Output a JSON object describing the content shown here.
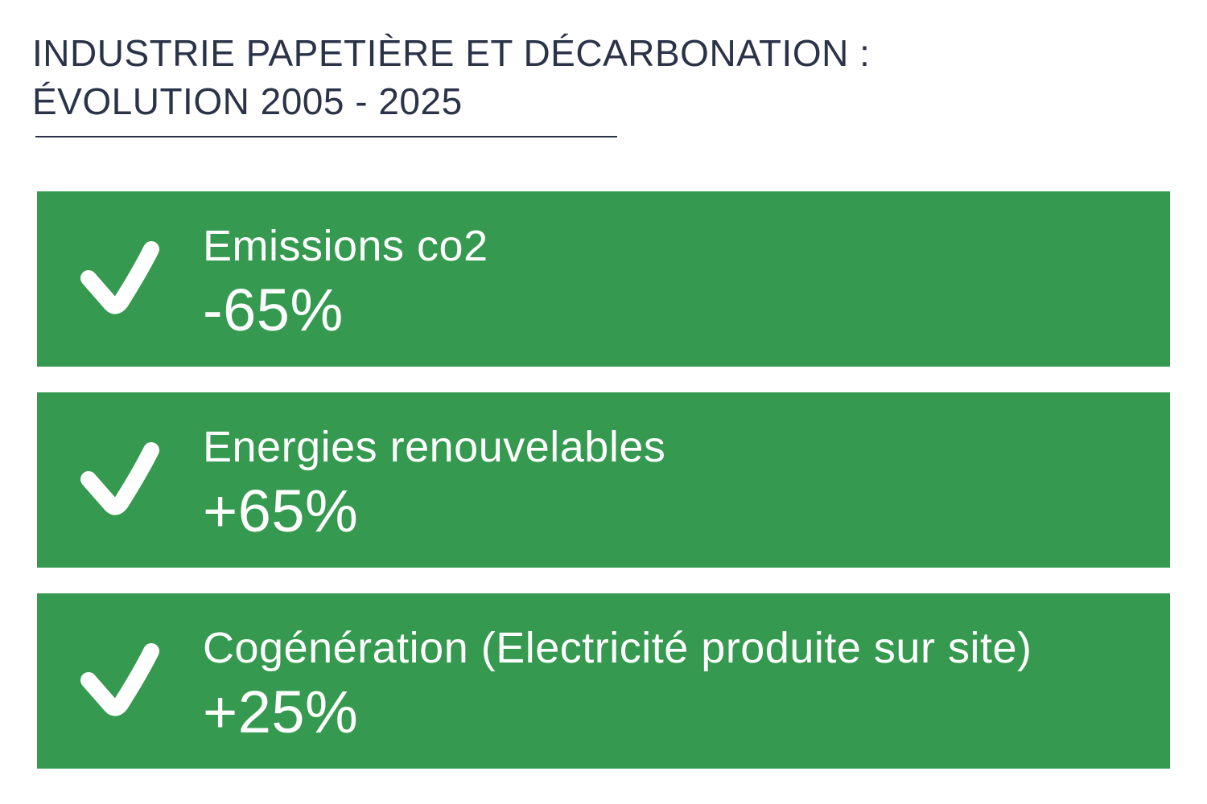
{
  "header": {
    "title_line1": "INDUSTRIE PAPETIÈRE ET DÉCARBONATION :",
    "title_line2": "ÉVOLUTION 2005 - 2025"
  },
  "colors": {
    "card_background": "#359a4f",
    "title_text": "#2b3349",
    "card_text": "#ffffff"
  },
  "cards": [
    {
      "icon": "checkmark-icon",
      "label": "Emissions co2",
      "value": "-65%"
    },
    {
      "icon": "checkmark-icon",
      "label": "Energies renouvelables",
      "value": "+65%"
    },
    {
      "icon": "checkmark-icon",
      "label": "Cogénération (Electricité produite sur site)",
      "value": "+25%"
    }
  ]
}
